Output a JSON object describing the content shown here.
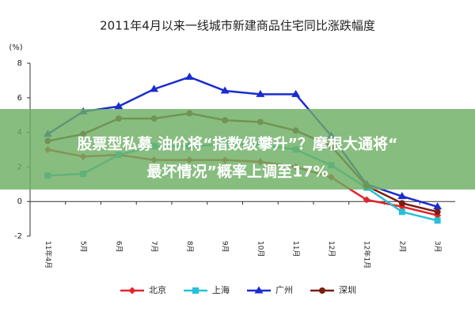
{
  "chart_data": {
    "type": "line",
    "title": "2011年4月以来一线城市新建商品住宅同比涨跌幅度",
    "y_label": "(%)",
    "categories": [
      "11年4月",
      "5月",
      "6月",
      "7月",
      "8月",
      "9月",
      "10月",
      "11月",
      "12月",
      "12年1月",
      "2月",
      "3月"
    ],
    "series": [
      {
        "name": "北京",
        "color": "#e3242b",
        "marker": "diamond",
        "values": [
          3.0,
          2.6,
          2.7,
          2.4,
          2.4,
          2.4,
          2.3,
          2.0,
          1.4,
          0.1,
          -0.3,
          -0.8
        ]
      },
      {
        "name": "上海",
        "color": "#27c0d8",
        "marker": "square",
        "values": [
          1.5,
          1.6,
          2.7,
          3.2,
          3.2,
          3.3,
          3.3,
          3.0,
          2.1,
          0.8,
          -0.6,
          -1.1
        ]
      },
      {
        "name": "广州",
        "color": "#1a2ccf",
        "marker": "triangle",
        "values": [
          3.9,
          5.2,
          5.5,
          6.5,
          7.2,
          6.4,
          6.2,
          6.2,
          3.8,
          1.0,
          0.3,
          -0.3
        ]
      },
      {
        "name": "深圳",
        "color": "#7a1e12",
        "marker": "circle",
        "values": [
          3.5,
          3.9,
          4.8,
          4.8,
          5.1,
          4.7,
          4.6,
          4.1,
          3.2,
          0.9,
          -0.1,
          -0.6
        ]
      }
    ],
    "ylim": [
      -2,
      8
    ],
    "yticks": [
      -2,
      0,
      2,
      4,
      6,
      8
    ]
  },
  "banner": {
    "lines": [
      "股票型私募 油价将“指数级攀升”？摩根大通将“",
      "最坏情况”概率上调至17%"
    ]
  }
}
